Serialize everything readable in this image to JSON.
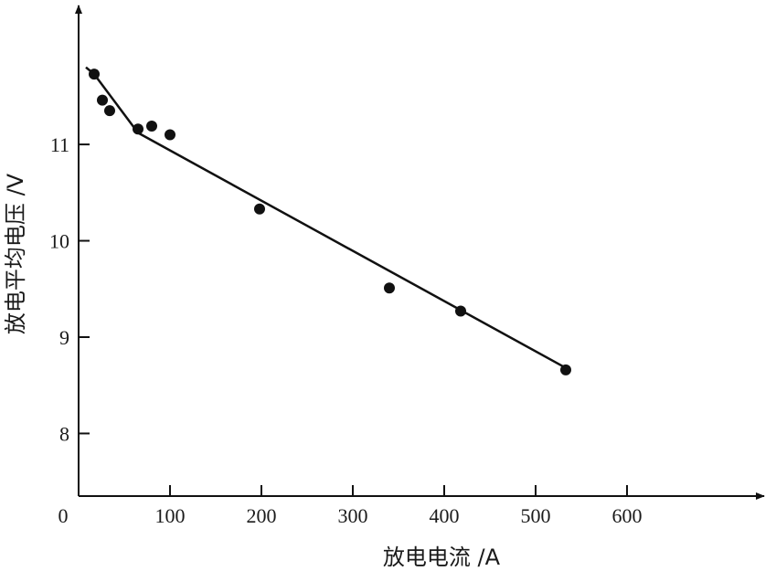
{
  "chart_data": {
    "type": "scatter",
    "xlabel": "放电电流 /A",
    "ylabel": "放电平均电压 /V",
    "origin_label": "0",
    "xlim": [
      0,
      680
    ],
    "ylim": [
      7.35,
      12.3
    ],
    "x_ticks": [
      100,
      200,
      300,
      400,
      500,
      600
    ],
    "x_tick_labels": [
      "100",
      "200",
      "300",
      "400",
      "500",
      "600"
    ],
    "y_ticks": [
      8,
      9,
      10,
      11
    ],
    "y_tick_labels": [
      "8",
      "9",
      "10",
      "11"
    ],
    "grid": false,
    "legend": "none",
    "colors": {
      "ink": "#111111"
    },
    "series": [
      {
        "kind": "points",
        "x": [
          17,
          26,
          34,
          65,
          80,
          100,
          198,
          340,
          418,
          533
        ],
        "y": [
          11.73,
          11.46,
          11.35,
          11.16,
          11.19,
          11.1,
          10.33,
          9.51,
          9.27,
          8.66
        ]
      },
      {
        "kind": "fit-line",
        "x": [
          8,
          17,
          65,
          533
        ],
        "y": [
          11.8,
          11.73,
          11.12,
          8.68
        ]
      }
    ]
  }
}
